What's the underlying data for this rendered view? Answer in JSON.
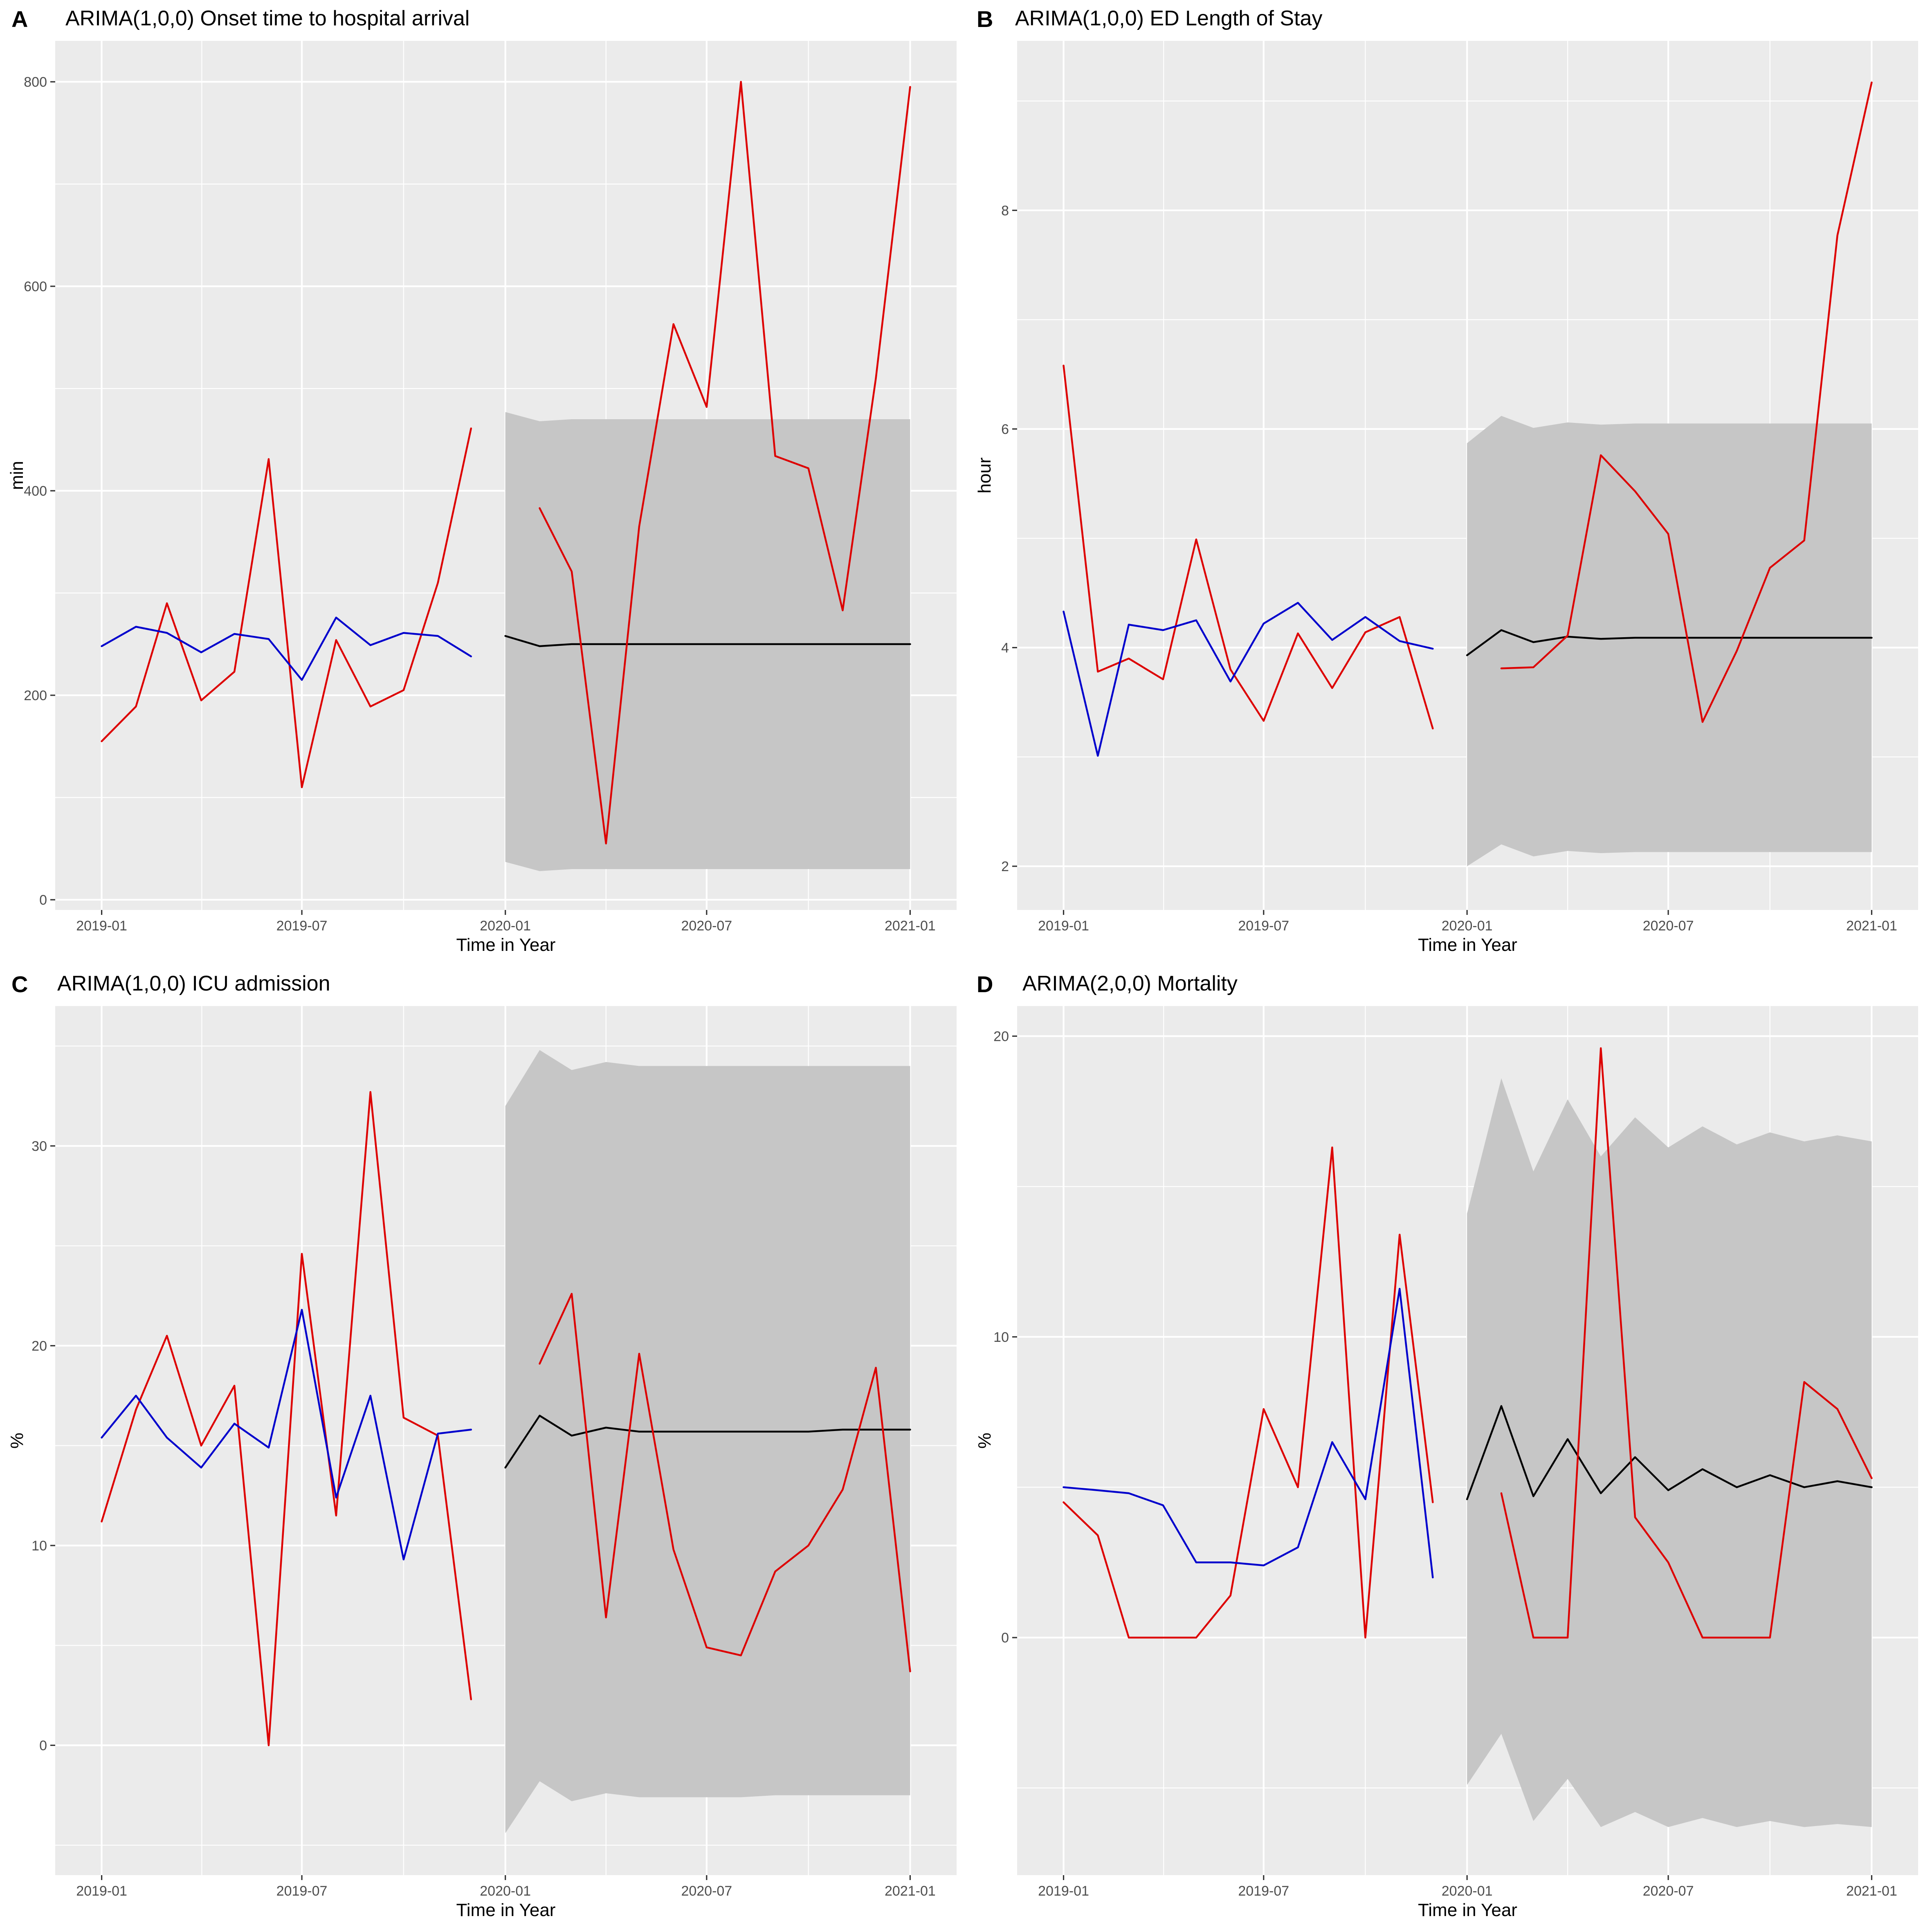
{
  "chart_data": [
    {
      "id": "A",
      "type": "line",
      "tag": "A",
      "title": "ARIMA(1,0,0) Onset time to hospital arrival",
      "xlabel": "Time in Year",
      "ylabel": "min",
      "x_ticks": [
        "2019-01",
        "2019-07",
        "2020-01",
        "2020-07",
        "2021-01"
      ],
      "xlim": [
        "2018-11-20",
        "2021-02-12"
      ],
      "ylim": [
        -10,
        840
      ],
      "y_ticks": [
        0,
        200,
        400,
        600,
        800
      ],
      "y_minor": [
        100,
        300,
        500,
        700
      ],
      "colors": {
        "blue": "#0000CC",
        "red": "#DD0000",
        "black": "#000000",
        "band": "#C6C6C6"
      },
      "blue": {
        "x": [
          "2019-01",
          "2019-02",
          "2019-03",
          "2019-04",
          "2019-05",
          "2019-06",
          "2019-07",
          "2019-08",
          "2019-09",
          "2019-10",
          "2019-11",
          "2019-12"
        ],
        "y": [
          248,
          267,
          261,
          242,
          260,
          255,
          215,
          276,
          249,
          261,
          258,
          238
        ]
      },
      "red_observed_2019": {
        "x": [
          "2019-01",
          "2019-02",
          "2019-03",
          "2019-04",
          "2019-05",
          "2019-06",
          "2019-07",
          "2019-08",
          "2019-09",
          "2019-10",
          "2019-11",
          "2019-12"
        ],
        "y": [
          155,
          189,
          290,
          195,
          223,
          431,
          110,
          254,
          189,
          205,
          310,
          461
        ]
      },
      "red_observed_2020": {
        "x": [
          "2020-02",
          "2020-03",
          "2020-04",
          "2020-05",
          "2020-06",
          "2020-07",
          "2020-08",
          "2020-09",
          "2020-10",
          "2020-11",
          "2020-12",
          "2021-01"
        ],
        "y": [
          383,
          321,
          55,
          365,
          563,
          482,
          800,
          434,
          422,
          283,
          510,
          795
        ]
      },
      "forecast": {
        "x": [
          "2020-01",
          "2020-02",
          "2020-03",
          "2020-04",
          "2020-05",
          "2020-06",
          "2020-07",
          "2020-08",
          "2020-09",
          "2020-10",
          "2020-11",
          "2020-12",
          "2021-01"
        ],
        "y": [
          258,
          248,
          250,
          250,
          250,
          250,
          250,
          250,
          250,
          250,
          250,
          250,
          250
        ],
        "lower": [
          37,
          28,
          30,
          30,
          30,
          30,
          30,
          30,
          30,
          30,
          30,
          30,
          30
        ],
        "upper": [
          477,
          468,
          470,
          470,
          470,
          470,
          470,
          470,
          470,
          470,
          470,
          470,
          470
        ]
      }
    },
    {
      "id": "B",
      "type": "line",
      "tag": "B",
      "title": "ARIMA(1,0,0) ED Length of Stay",
      "xlabel": "Time in Year",
      "ylabel": "hour",
      "x_ticks": [
        "2019-01",
        "2019-07",
        "2020-01",
        "2020-07",
        "2021-01"
      ],
      "xlim": [
        "2018-11-20",
        "2021-02-12"
      ],
      "ylim": [
        1.6,
        9.55
      ],
      "y_ticks": [
        2,
        4,
        6,
        8
      ],
      "y_minor": [
        3,
        5,
        7,
        9
      ],
      "colors": {
        "blue": "#0000CC",
        "red": "#DD0000",
        "black": "#000000",
        "band": "#C6C6C6"
      },
      "blue": {
        "x": [
          "2019-01",
          "2019-02",
          "2019-03",
          "2019-04",
          "2019-05",
          "2019-06",
          "2019-07",
          "2019-08",
          "2019-09",
          "2019-10",
          "2019-11",
          "2019-12"
        ],
        "y": [
          4.33,
          3.01,
          4.21,
          4.16,
          4.25,
          3.69,
          4.22,
          4.41,
          4.07,
          4.28,
          4.06,
          3.99
        ]
      },
      "red_observed_2019": {
        "x": [
          "2019-01",
          "2019-02",
          "2019-03",
          "2019-04",
          "2019-05",
          "2019-06",
          "2019-07",
          "2019-08",
          "2019-09",
          "2019-10",
          "2019-11",
          "2019-12"
        ],
        "y": [
          6.58,
          3.78,
          3.9,
          3.71,
          4.99,
          3.8,
          3.33,
          4.13,
          3.63,
          4.14,
          4.28,
          3.26
        ]
      },
      "red_observed_2020": {
        "x": [
          "2020-02",
          "2020-03",
          "2020-04",
          "2020-05",
          "2020-06",
          "2020-07",
          "2020-08",
          "2020-09",
          "2020-10",
          "2020-11",
          "2020-12",
          "2021-01"
        ],
        "y": [
          3.81,
          3.82,
          4.11,
          5.76,
          5.43,
          5.04,
          3.32,
          3.97,
          4.73,
          4.98,
          7.77,
          9.17
        ]
      },
      "forecast": {
        "x": [
          "2020-01",
          "2020-02",
          "2020-03",
          "2020-04",
          "2020-05",
          "2020-06",
          "2020-07",
          "2020-08",
          "2020-09",
          "2020-10",
          "2020-11",
          "2020-12",
          "2021-01"
        ],
        "y": [
          3.93,
          4.16,
          4.05,
          4.1,
          4.08,
          4.09,
          4.09,
          4.09,
          4.09,
          4.09,
          4.09,
          4.09,
          4.09
        ],
        "lower": [
          2.0,
          2.2,
          2.09,
          2.14,
          2.12,
          2.13,
          2.13,
          2.13,
          2.13,
          2.13,
          2.13,
          2.13,
          2.13
        ],
        "upper": [
          5.87,
          6.12,
          6.01,
          6.06,
          6.04,
          6.05,
          6.05,
          6.05,
          6.05,
          6.05,
          6.05,
          6.05,
          6.05
        ]
      }
    },
    {
      "id": "C",
      "type": "line",
      "tag": "C",
      "title": "ARIMA(1,0,0) ICU admission",
      "xlabel": "Time in Year",
      "ylabel": "%",
      "x_ticks": [
        "2019-01",
        "2019-07",
        "2020-01",
        "2020-07",
        "2021-01"
      ],
      "xlim": [
        "2018-11-20",
        "2021-02-12"
      ],
      "ylim": [
        -6.5,
        37
      ],
      "y_ticks": [
        0,
        10,
        20,
        30
      ],
      "y_minor": [
        -5,
        5,
        15,
        25,
        35
      ],
      "colors": {
        "blue": "#0000CC",
        "red": "#DD0000",
        "black": "#000000",
        "band": "#C6C6C6"
      },
      "blue": {
        "x": [
          "2019-01",
          "2019-02",
          "2019-03",
          "2019-04",
          "2019-05",
          "2019-06",
          "2019-07",
          "2019-08",
          "2019-09",
          "2019-10",
          "2019-11",
          "2019-12"
        ],
        "y": [
          15.4,
          17.5,
          15.4,
          13.9,
          16.1,
          14.9,
          21.8,
          12.4,
          17.5,
          9.3,
          15.6,
          15.8
        ]
      },
      "red_observed_2019": {
        "x": [
          "2019-01",
          "2019-02",
          "2019-03",
          "2019-04",
          "2019-05",
          "2019-06",
          "2019-07",
          "2019-08",
          "2019-09",
          "2019-10",
          "2019-11",
          "2019-12"
        ],
        "y": [
          11.2,
          16.8,
          20.5,
          15.0,
          18.0,
          0.0,
          24.6,
          11.5,
          32.7,
          16.4,
          15.5,
          2.3
        ]
      },
      "red_observed_2020": {
        "x": [
          "2020-02",
          "2020-03",
          "2020-04",
          "2020-05",
          "2020-06",
          "2020-07",
          "2020-08",
          "2020-09",
          "2020-10",
          "2020-11",
          "2020-12",
          "2021-01"
        ],
        "y": [
          19.1,
          22.6,
          6.4,
          19.6,
          9.8,
          4.9,
          4.5,
          8.7,
          10.0,
          12.8,
          18.9,
          3.7
        ]
      },
      "forecast": {
        "x": [
          "2020-01",
          "2020-02",
          "2020-03",
          "2020-04",
          "2020-05",
          "2020-06",
          "2020-07",
          "2020-08",
          "2020-09",
          "2020-10",
          "2020-11",
          "2020-12",
          "2021-01"
        ],
        "y": [
          13.9,
          16.5,
          15.5,
          15.9,
          15.7,
          15.7,
          15.7,
          15.7,
          15.7,
          15.7,
          15.8,
          15.8,
          15.8
        ],
        "lower": [
          -4.4,
          -1.8,
          -2.8,
          -2.4,
          -2.6,
          -2.6,
          -2.6,
          -2.6,
          -2.5,
          -2.5,
          -2.5,
          -2.5,
          -2.5
        ],
        "upper": [
          32.0,
          34.8,
          33.8,
          34.2,
          34.0,
          34.0,
          34.0,
          34.0,
          34.0,
          34.0,
          34.0,
          34.0,
          34.0
        ]
      }
    },
    {
      "id": "D",
      "type": "line",
      "tag": "D",
      "title": "ARIMA(2,0,0) Mortality",
      "xlabel": "Time in Year",
      "ylabel": "%",
      "x_ticks": [
        "2019-01",
        "2019-07",
        "2020-01",
        "2020-07",
        "2021-01"
      ],
      "xlim": [
        "2018-11-20",
        "2021-02-12"
      ],
      "ylim": [
        -7.9,
        21.0
      ],
      "y_ticks": [
        0,
        10,
        20
      ],
      "y_minor": [
        -5,
        5,
        15
      ],
      "colors": {
        "blue": "#0000CC",
        "red": "#DD0000",
        "black": "#000000",
        "band": "#C6C6C6"
      },
      "blue": {
        "x": [
          "2019-01",
          "2019-02",
          "2019-03",
          "2019-04",
          "2019-05",
          "2019-06",
          "2019-07",
          "2019-08",
          "2019-09",
          "2019-10",
          "2019-11",
          "2019-12"
        ],
        "y": [
          5.0,
          4.9,
          4.8,
          4.4,
          2.5,
          2.5,
          2.4,
          3.0,
          6.5,
          4.6,
          11.6,
          2.0
        ]
      },
      "red_observed_2019": {
        "x": [
          "2019-01",
          "2019-02",
          "2019-03",
          "2019-04",
          "2019-05",
          "2019-06",
          "2019-07",
          "2019-08",
          "2019-09",
          "2019-10",
          "2019-11",
          "2019-12"
        ],
        "y": [
          4.5,
          3.4,
          0.0,
          0.0,
          0.0,
          1.4,
          7.6,
          5.0,
          16.3,
          0.0,
          13.4,
          4.5
        ]
      },
      "red_observed_2020": {
        "x": [
          "2020-02",
          "2020-03",
          "2020-04",
          "2020-05",
          "2020-06",
          "2020-07",
          "2020-08",
          "2020-09",
          "2020-10",
          "2020-11",
          "2020-12",
          "2021-01"
        ],
        "y": [
          4.8,
          0.0,
          0.0,
          19.6,
          4.0,
          2.5,
          0.0,
          0.0,
          0.0,
          8.5,
          7.6,
          5.3
        ]
      },
      "forecast": {
        "x": [
          "2020-01",
          "2020-02",
          "2020-03",
          "2020-04",
          "2020-05",
          "2020-06",
          "2020-07",
          "2020-08",
          "2020-09",
          "2020-10",
          "2020-11",
          "2020-12",
          "2021-01"
        ],
        "y": [
          4.6,
          7.7,
          4.7,
          6.6,
          4.8,
          6.0,
          4.9,
          5.6,
          5.0,
          5.4,
          5.0,
          5.2,
          5.0
        ],
        "lower": [
          -4.9,
          -3.2,
          -6.1,
          -4.7,
          -6.3,
          -5.8,
          -6.3,
          -6.0,
          -6.3,
          -6.1,
          -6.3,
          -6.2,
          -6.3
        ],
        "upper": [
          14.1,
          18.6,
          15.5,
          17.9,
          16.0,
          17.3,
          16.3,
          17.0,
          16.4,
          16.8,
          16.5,
          16.7,
          16.5
        ]
      }
    }
  ]
}
